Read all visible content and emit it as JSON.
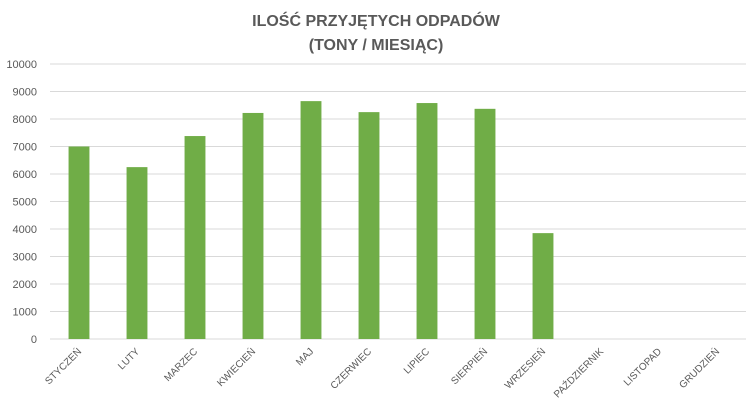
{
  "chart_data": {
    "type": "bar",
    "title_line1": "ILOŚĆ PRZYJĘTYCH ODPADÓW",
    "title_line2": "(TONY / MIESIĄC)",
    "xlabel": "",
    "ylabel": "",
    "ylim": [
      0,
      10000
    ],
    "yticks": [
      "0",
      "1000",
      "2000",
      "3000",
      "4000",
      "5000",
      "6000",
      "7000",
      "8000",
      "9000",
      "10000"
    ],
    "grid": true,
    "bar_color": "#70ad47",
    "categories": [
      "STYCZEŃ",
      "LUTY",
      "MARZEC",
      "KWIECIEŃ",
      "MAJ",
      "CZERWIEC",
      "LIPIEC",
      "SIERPIEŃ",
      "WRZESIEŃ",
      "PAŹDZIERNIK",
      "LISTOPAD",
      "GRUDZIEŃ"
    ],
    "values": [
      7000,
      6250,
      7380,
      8220,
      8650,
      8250,
      8580,
      8370,
      3850,
      null,
      null,
      null
    ]
  }
}
